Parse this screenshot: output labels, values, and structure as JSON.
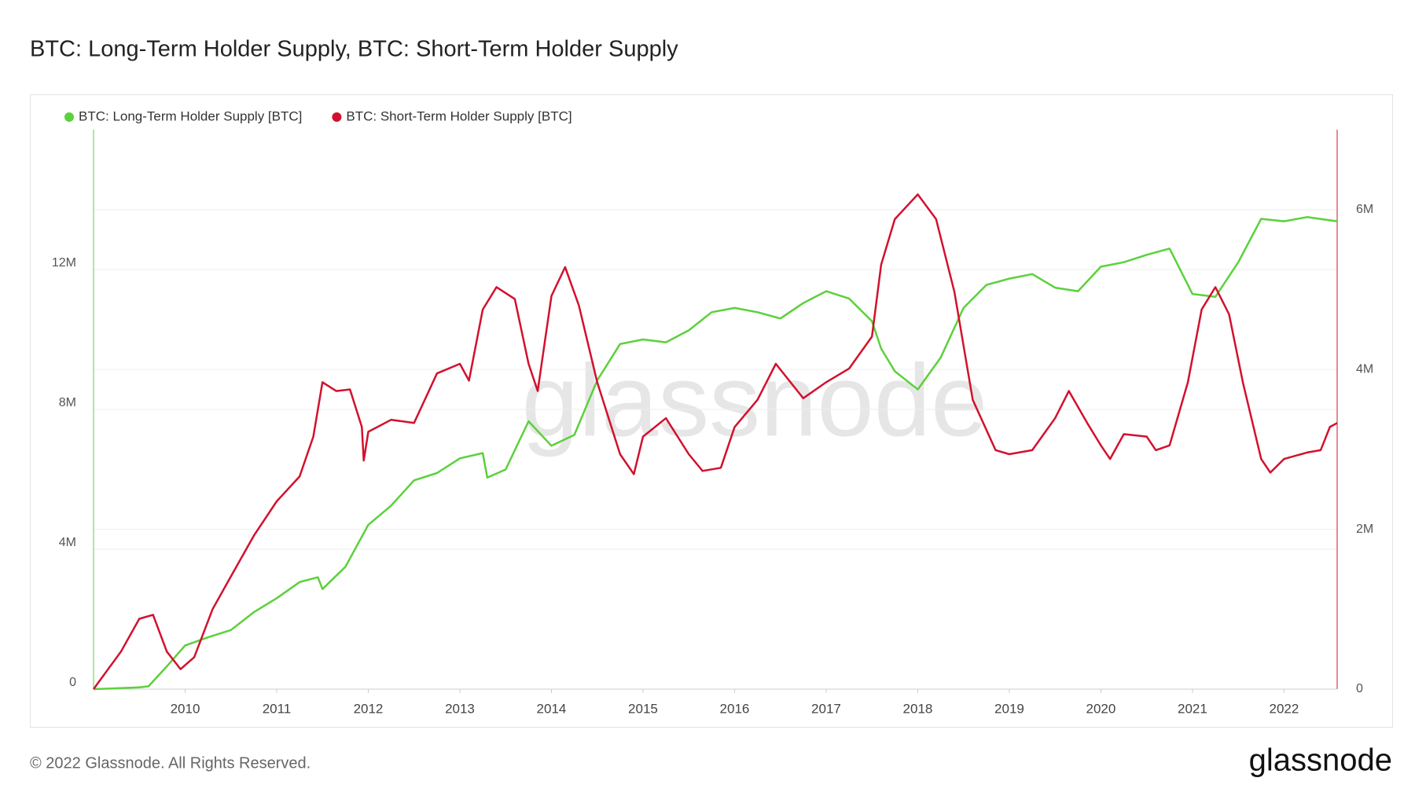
{
  "page_title": "BTC: Long-Term Holder Supply, BTC: Short-Term Holder Supply",
  "footer": {
    "copyright": "© 2022 Glassnode. All Rights Reserved.",
    "logo": "glassnode"
  },
  "chart_data": {
    "type": "line",
    "watermark": "glassnode",
    "xlim": [
      2009.0,
      2022.58
    ],
    "xticks": [
      2010,
      2011,
      2012,
      2013,
      2014,
      2015,
      2016,
      2017,
      2018,
      2019,
      2020,
      2021,
      2022
    ],
    "ylim": [
      0,
      16000000
    ],
    "yticks": [
      0,
      {
        "value": 4000000,
        "label": "4M"
      },
      {
        "value": 8000000,
        "label": "8M"
      },
      {
        "value": 12000000,
        "label": "12M"
      }
    ],
    "y2lim": [
      0,
      7000000
    ],
    "y2ticks": [
      0,
      {
        "value": 2000000,
        "label": "2M"
      },
      {
        "value": 4000000,
        "label": "4M"
      },
      {
        "value": 6000000,
        "label": "6M"
      }
    ],
    "grid": true,
    "series": [
      {
        "name": "BTC: Long-Term Holder Supply [BTC]",
        "color": "#5bd13b",
        "axis": "y",
        "x": [
          2009.0,
          2009.5,
          2009.6,
          2009.8,
          2010.0,
          2010.25,
          2010.5,
          2010.75,
          2011.0,
          2011.25,
          2011.45,
          2011.5,
          2011.75,
          2012.0,
          2012.25,
          2012.5,
          2012.75,
          2013.0,
          2013.25,
          2013.3,
          2013.5,
          2013.75,
          2014.0,
          2014.25,
          2014.5,
          2014.75,
          2015.0,
          2015.25,
          2015.5,
          2015.75,
          2016.0,
          2016.25,
          2016.5,
          2016.75,
          2017.0,
          2017.25,
          2017.5,
          2017.6,
          2017.75,
          2018.0,
          2018.25,
          2018.5,
          2018.75,
          2019.0,
          2019.25,
          2019.5,
          2019.75,
          2020.0,
          2020.25,
          2020.5,
          2020.75,
          2021.0,
          2021.25,
          2021.5,
          2021.75,
          2022.0,
          2022.25,
          2022.58
        ],
        "values": [
          0,
          50000,
          80000,
          650000,
          1250000,
          1480000,
          1690000,
          2200000,
          2600000,
          3060000,
          3200000,
          2860000,
          3500000,
          4700000,
          5250000,
          5970000,
          6180000,
          6600000,
          6750000,
          6050000,
          6280000,
          7660000,
          6960000,
          7270000,
          8830000,
          9870000,
          10000000,
          9920000,
          10260000,
          10780000,
          10900000,
          10780000,
          10600000,
          11040000,
          11380000,
          11170000,
          10520000,
          9740000,
          9090000,
          8570000,
          9480000,
          10900000,
          11560000,
          11740000,
          11870000,
          11480000,
          11380000,
          12080000,
          12210000,
          12420000,
          12600000,
          11300000,
          11220000,
          12210000,
          13450000,
          13380000,
          13500000,
          13380000
        ]
      },
      {
        "name": "BTC: Short-Term Holder Supply [BTC]",
        "color": "#d2112e",
        "axis": "y2",
        "x": [
          2009.0,
          2009.3,
          2009.5,
          2009.65,
          2009.8,
          2009.95,
          2010.1,
          2010.3,
          2010.5,
          2010.75,
          2011.0,
          2011.25,
          2011.4,
          2011.5,
          2011.65,
          2011.8,
          2011.93,
          2011.95,
          2012.0,
          2012.25,
          2012.5,
          2012.75,
          2013.0,
          2013.1,
          2013.25,
          2013.4,
          2013.6,
          2013.75,
          2013.85,
          2014.0,
          2014.15,
          2014.3,
          2014.5,
          2014.75,
          2014.9,
          2015.0,
          2015.25,
          2015.5,
          2015.65,
          2015.85,
          2016.0,
          2016.25,
          2016.45,
          2016.75,
          2017.0,
          2017.25,
          2017.5,
          2017.6,
          2017.75,
          2018.0,
          2018.2,
          2018.4,
          2018.6,
          2018.85,
          2019.0,
          2019.25,
          2019.5,
          2019.65,
          2019.85,
          2020.0,
          2020.1,
          2020.25,
          2020.5,
          2020.6,
          2020.75,
          2020.95,
          2021.1,
          2021.25,
          2021.4,
          2021.55,
          2021.75,
          2021.85,
          2022.0,
          2022.25,
          2022.4,
          2022.5,
          2022.58
        ],
        "values": [
          0,
          470000,
          880000,
          930000,
          470000,
          250000,
          400000,
          1000000,
          1410000,
          1920000,
          2350000,
          2660000,
          3160000,
          3840000,
          3730000,
          3750000,
          3280000,
          2860000,
          3220000,
          3370000,
          3330000,
          3950000,
          4070000,
          3860000,
          4750000,
          5030000,
          4880000,
          4070000,
          3730000,
          4920000,
          5280000,
          4800000,
          3840000,
          2940000,
          2690000,
          3160000,
          3390000,
          2940000,
          2730000,
          2770000,
          3280000,
          3620000,
          4070000,
          3640000,
          3840000,
          4010000,
          4410000,
          5310000,
          5880000,
          6190000,
          5880000,
          4970000,
          3620000,
          2990000,
          2940000,
          2990000,
          3390000,
          3730000,
          3330000,
          3050000,
          2880000,
          3190000,
          3160000,
          2990000,
          3050000,
          3840000,
          4750000,
          5030000,
          4690000,
          3840000,
          2880000,
          2710000,
          2880000,
          2960000,
          2990000,
          3280000,
          3330000
        ]
      }
    ]
  }
}
